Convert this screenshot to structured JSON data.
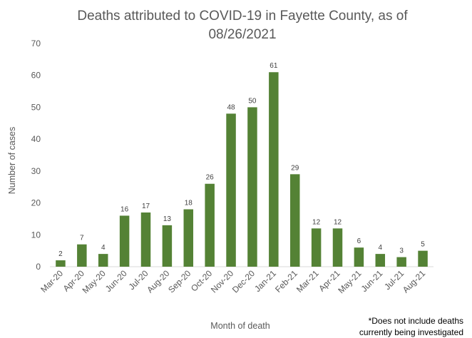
{
  "chart_data": {
    "type": "bar",
    "title_line1": "Deaths attributed to COVID-19 in Fayette County, as of",
    "title_line2": "08/26/2021",
    "xlabel": "Month of death",
    "ylabel": "Number of cases",
    "ylim": [
      0,
      70
    ],
    "yticks": [
      0,
      10,
      20,
      30,
      40,
      50,
      60,
      70
    ],
    "grid": false,
    "legend": "none",
    "bar_color": "#548235",
    "categories": [
      "Mar-20",
      "Apr-20",
      "May-20",
      "Jun-20",
      "Jul-20",
      "Aug-20",
      "Sep-20",
      "Oct-20",
      "Nov-20",
      "Dec-20",
      "Jan-21",
      "Feb-21",
      "Mar-21",
      "Apr-21",
      "May-21",
      "Jun-21",
      "Jul-21",
      "Aug-21"
    ],
    "values": [
      2,
      7,
      4,
      16,
      17,
      13,
      18,
      26,
      48,
      50,
      61,
      29,
      12,
      12,
      6,
      4,
      3,
      5
    ]
  },
  "footnote": {
    "line1": "*Does not include deaths",
    "line2": "currently being investigated"
  }
}
